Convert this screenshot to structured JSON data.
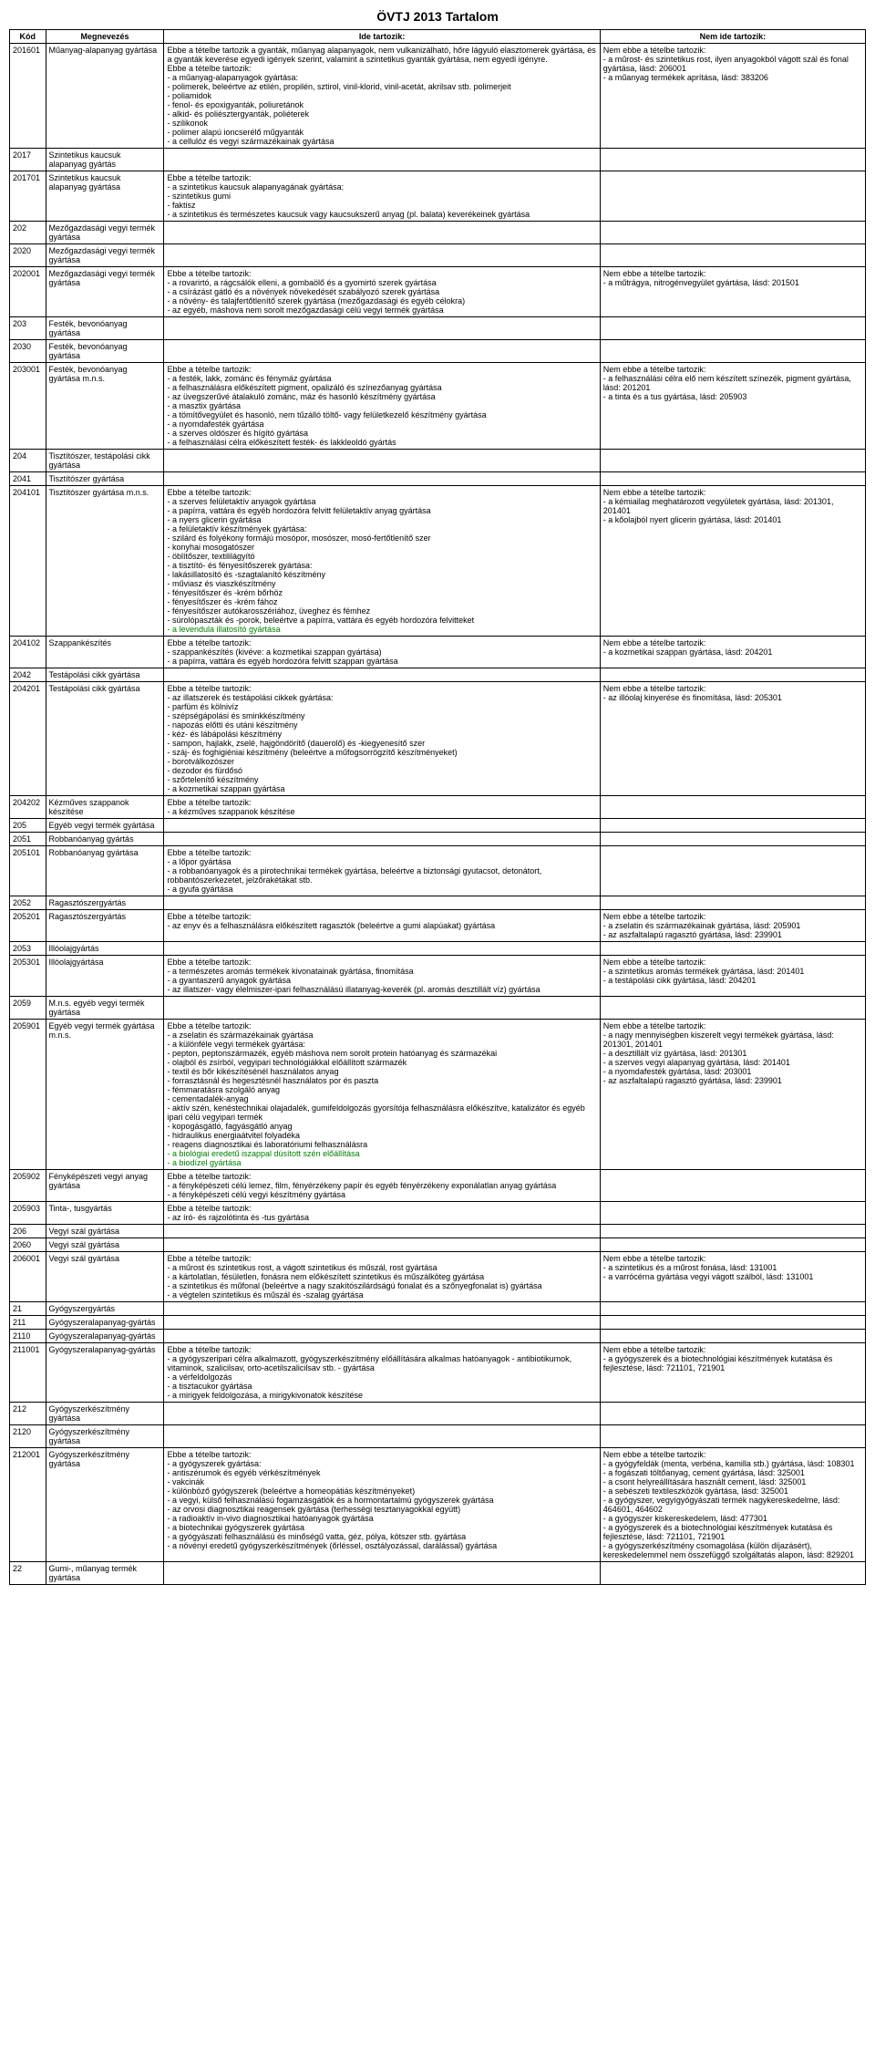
{
  "title": "ÖVTJ 2013 Tartalom",
  "headers": [
    "Kód",
    "Megnevezés",
    "Ide tartozik:",
    "Nem ide tartozik:"
  ],
  "rows": [
    {
      "kod": "201601",
      "meg": "Műanyag-alapanyag gyártása",
      "ide": "Ebbe a tételbe tartozik a gyanták, műanyag alapanyagok, nem vulkanizálható, hőre lágyuló elasztomerek gyártása, és a gyanták keverése egyedi igények szerint, valamint a szintetikus gyanták gyártása, nem egyedi igényre.\nEbbe a tételbe tartozik:\n- a műanyag-alapanyagok gyártása:\n  - polimerek, beleértve az etilén, propilén, sztirol, vinil-klorid, vinil-acetát, akrilsav stb. polimerjeit\n  - poliamidok\n  - fenol- és epoxigyanták, poliuretánok\n  - alkid- és poliésztergyanták, poliéterek\n  - szilikonok\n  - polimer alapú ioncserélő műgyanták\n- a cellulóz és vegyi származékainak gyártása",
      "nem": "Nem ebbe a tételbe tartozik:\n- a műrost- és szintetikus rost, ilyen anyagokból vágott szál és fonal gyártása, lásd: 206001\n- a műanyag termékek aprítása, lásd: 383206"
    },
    {
      "kod": "2017",
      "meg": "Szintetikus kaucsuk alapanyag gyártás",
      "ide": "",
      "nem": ""
    },
    {
      "kod": "201701",
      "meg": "Szintetikus kaucsuk alapanyag gyártása",
      "ide": "Ebbe a tételbe tartozik:\n- a szintetikus kaucsuk alapanyagának gyártása:\n  - szintetikus gumi\n  - faktisz\n- a szintetikus és természetes kaucsuk vagy kaucsukszerű anyag (pl. balata) keverékeinek gyártása",
      "nem": ""
    },
    {
      "kod": "202",
      "meg": "Mezőgazdasági vegyi termék gyártása",
      "ide": "",
      "nem": ""
    },
    {
      "kod": "2020",
      "meg": "Mezőgazdasági vegyi termék gyártása",
      "ide": "",
      "nem": ""
    },
    {
      "kod": "202001",
      "meg": "Mezőgazdasági vegyi termék gyártása",
      "ide": "Ebbe a tételbe tartozik:\n- a rovarirtó, a rágcsálók elleni, a gombaölő és a gyomirtó szerek gyártása\n- a csírázást gátló és a növények növekedését szabályozó szerek gyártása\n- a növény- és talajfertőtlenítő szerek gyártása (mezőgazdasági és egyéb célokra)\n- az egyéb, máshova nem sorolt mezőgazdasági célú vegyi termék gyártása",
      "nem": "Nem ebbe a tételbe tartozik:\n- a műtrágya, nitrogénvegyület gyártása, lásd: 201501"
    },
    {
      "kod": "203",
      "meg": "Festék, bevonóanyag gyártása",
      "ide": "",
      "nem": ""
    },
    {
      "kod": "2030",
      "meg": "Festék, bevonóanyag gyártása",
      "ide": "",
      "nem": ""
    },
    {
      "kod": "203001",
      "meg": "Festék, bevonóanyag gyártása m.n.s.",
      "ide": "Ebbe a tételbe tartozik:\n- a festék, lakk, zománc és fénymáz gyártása\n- a felhasználásra előkészített pigment, opalizáló és színezőanyag gyártása\n- az üvegszerűvé átalakuló zománc, máz és hasonló készítmény gyártása\n- a masztix gyártása\n- a tömítővegyület és hasonló, nem tűzálló töltő- vagy felületkezelő készítmény gyártása\n- a nyomdafesték gyártása\n- a szerves oldószer és hígító gyártása\n- a felhasználási célra előkészített festék- és lakkleoldó gyártás",
      "nem": "Nem ebbe a tételbe tartozik:\n- a felhasználási célra elő nem készített színezék, pigment gyártása, lásd: 201201\n- a tinta és a tus gyártása, lásd: 205903"
    },
    {
      "kod": "204",
      "meg": "Tisztítószer, testápolási cikk gyártása",
      "ide": "",
      "nem": ""
    },
    {
      "kod": "2041",
      "meg": "Tisztítószer gyártása",
      "ide": "",
      "nem": ""
    },
    {
      "kod": "204101",
      "meg": "Tisztítószer gyártása m.n.s.",
      "ide": "Ebbe a tételbe tartozik:\n- a szerves felületaktív anyagok gyártása\n- a papírra, vattára és egyéb hordozóra felvitt felületaktív anyag gyártása\n- a nyers glicerin gyártása\n- a felületaktív készítmények gyártása:\n  - szilárd és folyékony formájú mosópor, mosószer, mosó-fertőtlenítő szer\n  - konyhai mosogatószer\n  - öblítőszer, textililágyító\n- a tisztító- és fényesítőszerek gyártása:\n  - lakásillatosító és -szagtalanító készítmény\n  - műviasz és viaszkészítmény\n  - fényesítőszer és -krém bőrhöz\n  - fényesítőszer és -krém fához\n  - fényesítőszer autókarosszériához, üveghez és fémhez\n  - súrolópaszták és -porok, beleértve a papírra, vattára és egyéb hordozóra felvitteket",
      "nem": "Nem ebbe a tételbe tartozik:\n- a kémiailag meghatározott vegyületek gyártása, lásd: 201301, 201401\n- a kőolajból nyert glicerin gyártása, lásd: 201401",
      "extra": "- a levendula illatosító gyártása"
    },
    {
      "kod": "204102",
      "meg": "Szappankészítés",
      "ide": "Ebbe a tételbe tartozik:\n- szappankészítés (kivéve: a kozmetikai szappan gyártása)\n- a papírra, vattára és egyéb hordozóra felvitt szappan gyártása",
      "nem": "Nem ebbe a tételbe tartozik:\n- a kozmetikai szappan gyártása, lásd: 204201"
    },
    {
      "kod": "2042",
      "meg": "Testápolási cikk gyártása",
      "ide": "",
      "nem": ""
    },
    {
      "kod": "204201",
      "meg": "Testápolási cikk gyártása",
      "ide": "Ebbe a tételbe tartozik:\n- az illatszerek és testápolási cikkek gyártása:\n  - parfüm és kölnivíz\n  - szépségápolási és sminkkészítmény\n  - napozás előtti és utáni készítmény\n  - kéz- és lábápolási készítmény\n  - sampon, hajlakk, zselé, hajgöndörítő (dauerolő) és -kiegyenesítő szer\n  - száj- és foghigiéniai készítmény (beleértve a műfogsorrögzítő készítményeket)\n  - borotválkozószer\n  - dezodor és fürdősó\n  - szőrtelenítő készítmény\n- a kozmetikai szappan gyártása",
      "nem": "Nem ebbe a tételbe tartozik:\n- az illóolaj kinyerése és finomítása, lásd: 205301"
    },
    {
      "kod": "204202",
      "meg": "Kézműves szappanok készítése",
      "ide": "Ebbe a tételbe tartozik:\n- a kézműves szappanok készítése",
      "nem": ""
    },
    {
      "kod": "205",
      "meg": "Egyéb vegyi termék gyártása",
      "ide": "",
      "nem": ""
    },
    {
      "kod": "2051",
      "meg": "Robbanóanyag gyártás",
      "ide": "",
      "nem": ""
    },
    {
      "kod": "205101",
      "meg": "Robbanóanyag gyártása",
      "ide": "Ebbe a tételbe tartozik:\n- a lőpor gyártása\n- a robbanóanyagok és a pirotechnikai termékek gyártása, beleértve a biztonsági gyutacsot, detonátort, robbantószerkezetet, jelzőrakétákat stb.\n- a gyufa gyártása",
      "nem": ""
    },
    {
      "kod": "2052",
      "meg": "Ragasztószergyártás",
      "ide": "",
      "nem": ""
    },
    {
      "kod": "205201",
      "meg": "Ragasztószergyártás",
      "ide": "Ebbe a tételbe tartozik:\n- az enyv és a felhasználásra előkészített ragasztók (beleértve a gumi alapúakat) gyártása",
      "nem": "Nem ebbe a tételbe tartozik:\n- a zselatin és származékainak gyártása, lásd: 205901\n- az aszfaltalapú ragasztó gyártása, lásd: 239901"
    },
    {
      "kod": "2053",
      "meg": "Illóolajgyártás",
      "ide": "",
      "nem": ""
    },
    {
      "kod": "205301",
      "meg": "Illóolajgyártása",
      "ide": "Ebbe a tételbe tartozik:\n- a természetes aromás termékek kivonatainak gyártása, finomítása\n- a gyantaszerű anyagok gyártása\n- az illatszer- vagy élelmiszer-ipari felhasználású illatanyag-keverék (pl. aromás desztillált víz) gyártása",
      "nem": "Nem ebbe a tételbe tartozik:\n- a szintetikus aromás termékek gyártása, lásd: 201401\n- a testápolási cikk gyártása, lásd: 204201"
    },
    {
      "kod": "2059",
      "meg": "M.n.s. egyéb vegyi termék gyártása",
      "ide": "",
      "nem": ""
    },
    {
      "kod": "205901",
      "meg": "Egyéb vegyi termék gyártása m.n.s.",
      "ide": "Ebbe a tételbe tartozik:\n- a zselatin és származékainak gyártása\n- a különféle vegyi termékek gyártása:\n  - pepton, peptonszármazék, egyéb máshova nem sorolt protein hatóanyag és származékai\n  - olajból és zsírból, vegyipari technológiákkal előállított származék\n  - textil és bőr kikészítésénél használatos anyag\n  - forrasztásnál és hegesztésnél használatos por és paszta\n  - fémmaratásra szolgáló anyag\n  - cementadalék-anyag\n  - aktív szén, kenéstechnikai olajadalék, gumifeldolgozás gyorsítója felhasználásra előkészítve, katalizátor és egyéb ipari célú vegyipari termék\n  - kopogásgátló, fagyásgátló anyag\n  - hidraulikus energiaátvitel folyadéka\n  - reagens diagnosztikai és laboratóriumi felhasználásra",
      "nem": "Nem ebbe a tételbe tartozik:\n- a nagy mennyiségben kiszerelt vegyi termékek gyártása, lásd: 201301, 201401\n- a desztillált víz gyártása, lásd: 201301\n- a szerves vegyi alapanyag gyártása, lásd: 201401\n- a nyomdafesték gyártása, lásd: 203001\n- az aszfaltalapú ragasztó gyártása, lásd: 239901",
      "extra": "- a biológiai eredetű iszappal dúsított szén előállítása\n- a biodízel gyártása"
    },
    {
      "kod": "205902",
      "meg": "Fényképészeti vegyi anyag gyártása",
      "ide": "Ebbe a tételbe tartozik:\n- a fényképészeti célú lemez, film, fényérzékeny papír és egyéb fényérzékeny exponálatlan anyag gyártása\n- a fényképészeti célú vegyi készítmény gyártása",
      "nem": ""
    },
    {
      "kod": "205903",
      "meg": "Tinta-, tusgyártás",
      "ide": "Ebbe a tételbe tartozik:\n- az író- és rajzolótinta és -tus gyártása",
      "nem": ""
    },
    {
      "kod": "206",
      "meg": "Vegyi szál gyártása",
      "ide": "",
      "nem": ""
    },
    {
      "kod": "2060",
      "meg": "Vegyi szál gyártása",
      "ide": "",
      "nem": ""
    },
    {
      "kod": "206001",
      "meg": "Vegyi szál gyártása",
      "ide": "Ebbe a tételbe tartozik:\n- a műrost és szintetikus rost, a vágott szintetikus és műszál, rost gyártása\n- a kártolatlan, fésületlen, fonásra nem előkészített szintetikus és műszálköteg gyártása\n- a szintetikus és műfonal (beleértve a nagy szakítószilárdságú fonalat és a szőnyegfonalat is) gyártása\n- a végtelen szintetikus és műszál és -szalag gyártása",
      "nem": "Nem ebbe a tételbe tartozik:\n- a szintetikus és a műrost fonása, lásd: 131001\n- a varrócérna gyártása vegyi vágott szálból, lásd: 131001"
    },
    {
      "kod": "21",
      "meg": "Gyógyszergyártás",
      "ide": "",
      "nem": ""
    },
    {
      "kod": "211",
      "meg": "Gyógyszeralapanyag-gyártás",
      "ide": "",
      "nem": ""
    },
    {
      "kod": "2110",
      "meg": "Gyógyszeralapanyag-gyártás",
      "ide": "",
      "nem": ""
    },
    {
      "kod": "211001",
      "meg": "Gyógyszeralapanyag-gyártás",
      "ide": "Ebbe a tételbe tartozik:\n- a gyógyszeripari célra alkalmazott, gyógyszerkészítmény előállítására alkalmas hatóanyagok - antibiotikumok, vitaminok, szalicilsav, orto-acetilszalicilsav stb. - gyártása\n- a vérfeldolgozás\n- a tisztacukor gyártása\n- a mirigyek feldolgozása, a mirigykivonatok készítése",
      "nem": "Nem ebbe a tételbe tartozik:\n- a gyógyszerek és a biotechnológiai készítmények kutatása és fejlesztése, lásd: 721101, 721901"
    },
    {
      "kod": "212",
      "meg": "Gyógyszerkészítmény gyártása",
      "ide": "",
      "nem": ""
    },
    {
      "kod": "2120",
      "meg": "Gyógyszerkészítmény gyártása",
      "ide": "",
      "nem": ""
    },
    {
      "kod": "212001",
      "meg": "Gyógyszerkészítmény gyártása",
      "ide": "Ebbe a tételbe tartozik:\n- a gyógyszerek gyártása:\n  - antiszérumok és egyéb vérkészítmények\n  - vakcinák\n  - különböző gyógyszerek (beleértve a homeopátiás készítményeket)\n- a vegyi, külső felhasználású fogamzásgátlók és a hormontartalmú gyógyszerek gyártása\n- az orvosi diagnosztikai reagensek gyártása (terhességi tesztanyagokkal együtt)\n- a radioaktív in-vivo diagnosztikai hatóanyagok gyártása\n- a biotechnikai gyógyszerek gyártása\n- a gyógyászati felhasználású és minőségű vatta, géz, pólya, kötszer stb. gyártása\n- a növényi eredetű gyógyszerkészítmények (őrléssel, osztályozással, darálással) gyártása",
      "nem": "Nem ebbe a tételbe tartozik:\n- a gyógyfeldák (menta, verbéna, kamilla stb.) gyártása, lásd: 108301\n- a fogászati töltőanyag, cement gyártása, lásd: 325001\n- a csont helyreállítására használt cement, lásd: 325001\n- a sebészeti textileszközök gyártása, lásd: 325001\n- a gyógyszer, vegyígyógyászati termék nagykereskedelme, lásd: 464601, 464602\n- a gyógyszer kiskereskedelem, lásd: 477301\n- a gyógyszerek és a biotechnológiai készítmények kutatása és fejlesztése, lásd: 721101, 721901\n- a gyógyszerkészítmény csomagolása (külön díjazásért), kereskedelemmel nem összefüggő szolgáltatás alapon, lásd: 829201"
    },
    {
      "kod": "22",
      "meg": "Gumi-, műanyag termék gyártása",
      "ide": "",
      "nem": ""
    }
  ]
}
